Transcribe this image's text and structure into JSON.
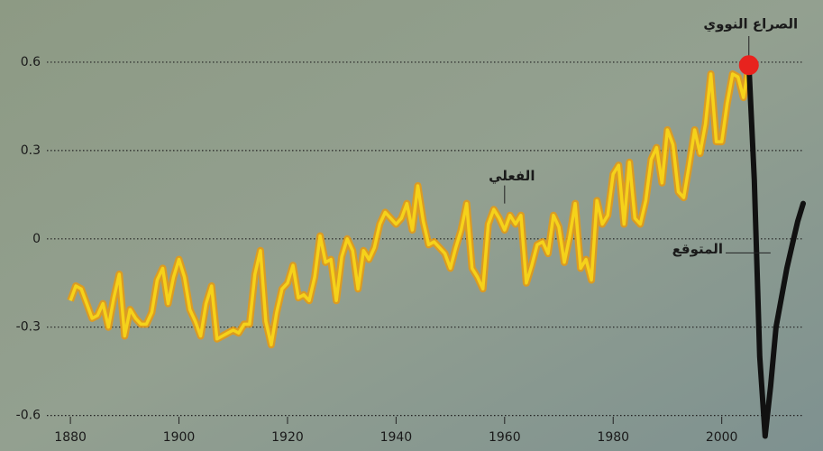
{
  "chart_data": {
    "type": "line",
    "series": [
      {
        "name": "الفعلي",
        "color": "#f5d21a",
        "x": [
          1880,
          1881,
          1882,
          1883,
          1884,
          1885,
          1886,
          1887,
          1888,
          1889,
          1890,
          1891,
          1892,
          1893,
          1894,
          1895,
          1896,
          1897,
          1898,
          1899,
          1900,
          1901,
          1902,
          1903,
          1904,
          1905,
          1906,
          1907,
          1908,
          1909,
          1910,
          1911,
          1912,
          1913,
          1914,
          1915,
          1916,
          1917,
          1918,
          1919,
          1920,
          1921,
          1922,
          1923,
          1924,
          1925,
          1926,
          1927,
          1928,
          1929,
          1930,
          1931,
          1932,
          1933,
          1934,
          1935,
          1936,
          1937,
          1938,
          1939,
          1940,
          1941,
          1942,
          1943,
          1944,
          1945,
          1946,
          1947,
          1948,
          1949,
          1950,
          1951,
          1952,
          1953,
          1954,
          1955,
          1956,
          1957,
          1958,
          1959,
          1960,
          1961,
          1962,
          1963,
          1964,
          1965,
          1966,
          1967,
          1968,
          1969,
          1970,
          1971,
          1972,
          1973,
          1974,
          1975,
          1976,
          1977,
          1978,
          1979,
          1980,
          1981,
          1982,
          1983,
          1984,
          1985,
          1986,
          1987,
          1988,
          1989,
          1990,
          1991,
          1992,
          1993,
          1994,
          1995,
          1996,
          1997,
          1998,
          1999,
          2000,
          2001,
          2002,
          2003,
          2004,
          2005
        ],
        "values": [
          -0.21,
          -0.16,
          -0.17,
          -0.22,
          -0.27,
          -0.26,
          -0.22,
          -0.3,
          -0.2,
          -0.12,
          -0.33,
          -0.24,
          -0.27,
          -0.29,
          -0.29,
          -0.25,
          -0.14,
          -0.1,
          -0.22,
          -0.13,
          -0.07,
          -0.13,
          -0.24,
          -0.28,
          -0.33,
          -0.22,
          -0.16,
          -0.34,
          -0.33,
          -0.32,
          -0.31,
          -0.32,
          -0.29,
          -0.29,
          -0.12,
          -0.04,
          -0.28,
          -0.36,
          -0.25,
          -0.17,
          -0.15,
          -0.09,
          -0.2,
          -0.19,
          -0.21,
          -0.13,
          0.01,
          -0.08,
          -0.07,
          -0.21,
          -0.06,
          0.0,
          -0.04,
          -0.17,
          -0.04,
          -0.07,
          -0.03,
          0.05,
          0.09,
          0.07,
          0.05,
          0.07,
          0.12,
          0.03,
          0.18,
          0.06,
          -0.02,
          -0.01,
          -0.03,
          -0.05,
          -0.1,
          -0.03,
          0.03,
          0.12,
          -0.1,
          -0.13,
          -0.17,
          0.05,
          0.1,
          0.07,
          0.03,
          0.08,
          0.05,
          0.08,
          -0.15,
          -0.09,
          -0.02,
          -0.01,
          -0.05,
          0.08,
          0.04,
          -0.08,
          0.01,
          0.12,
          -0.1,
          -0.07,
          -0.14,
          0.13,
          0.05,
          0.08,
          0.22,
          0.25,
          0.05,
          0.26,
          0.07,
          0.05,
          0.13,
          0.27,
          0.31,
          0.19,
          0.37,
          0.32,
          0.16,
          0.14,
          0.25,
          0.37,
          0.29,
          0.39,
          0.56,
          0.33,
          0.33,
          0.46,
          0.56,
          0.55,
          0.48,
          0.59
        ]
      },
      {
        "name": "المتوقع",
        "color": "#111111",
        "x": [
          2005,
          2006,
          2007,
          2008,
          2009,
          2010,
          2011,
          2012,
          2013,
          2014,
          2015
        ],
        "values": [
          0.59,
          0.2,
          -0.4,
          -0.67,
          -0.5,
          -0.3,
          -0.2,
          -0.1,
          -0.02,
          0.06,
          0.12
        ]
      }
    ],
    "event": {
      "label": "الصراع النووي",
      "x": 2005,
      "y": 0.59,
      "color": "#e8231e"
    },
    "xlim": [
      1875,
      2016
    ],
    "xticks": [
      1880,
      1900,
      1920,
      1940,
      1960,
      1980,
      2000
    ],
    "ylim": [
      -0.69,
      0.75
    ],
    "yticks": [
      0.6,
      0.3,
      0,
      -0.3,
      -0.6
    ],
    "grid": true
  }
}
